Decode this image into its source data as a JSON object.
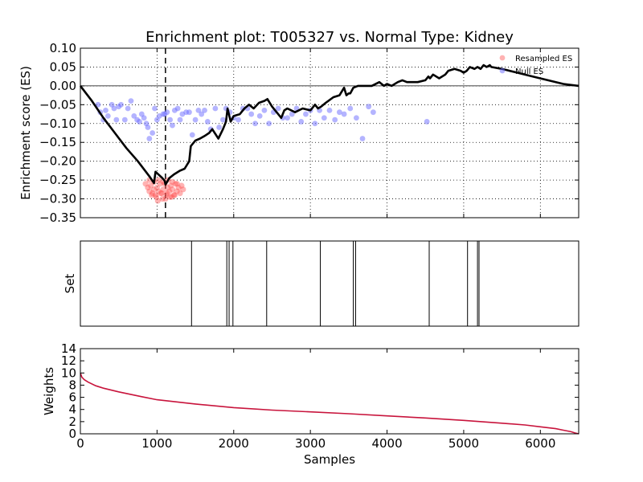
{
  "chart_data": [
    {
      "type": "line",
      "title": "Enrichment plot: T005327 vs. Normal Type: Kidney",
      "ylabel": "Enrichment score (ES)",
      "xlim": [
        0,
        6500
      ],
      "ylim": [
        -0.35,
        0.1
      ],
      "yticks": [
        "0.10",
        "0.05",
        "0.00",
        "−0.05",
        "−0.10",
        "−0.15",
        "−0.20",
        "−0.25",
        "−0.30",
        "−0.35"
      ],
      "ytick_values": [
        0.1,
        0.05,
        0.0,
        -0.05,
        -0.1,
        -0.15,
        -0.2,
        -0.25,
        -0.3,
        -0.35
      ],
      "grid": true,
      "legend_position": "top-right",
      "legend": [
        "Resampled ES",
        "Null ES"
      ],
      "colors": {
        "resampled": "#ff5555",
        "null": "#6a6aff",
        "es_line": "#000000"
      },
      "dashed_vline_x": 1110,
      "series": [
        {
          "name": "ES",
          "x": [
            0,
            150,
            300,
            450,
            600,
            750,
            900,
            960,
            980,
            1060,
            1100,
            1110,
            1160,
            1220,
            1300,
            1360,
            1420,
            1440,
            1460,
            1500,
            1560,
            1620,
            1680,
            1720,
            1800,
            1860,
            1900,
            1920,
            1960,
            2000,
            2080,
            2140,
            2200,
            2260,
            2330,
            2400,
            2440,
            2500,
            2560,
            2620,
            2660,
            2700,
            2800,
            2900,
            3000,
            3060,
            3100,
            3140,
            3200,
            3300,
            3380,
            3440,
            3470,
            3500,
            3520,
            3560,
            3620,
            3700,
            3800,
            3900,
            3960,
            4000,
            4060,
            4140,
            4200,
            4260,
            4340,
            4400,
            4500,
            4540,
            4560,
            4600,
            4680,
            4760,
            4800,
            4880,
            4960,
            5000,
            5040,
            5080,
            5140,
            5180,
            5220,
            5260,
            5300,
            5340,
            5360,
            5500,
            5700,
            5900,
            6100,
            6300,
            6500
          ],
          "y": [
            0.0,
            -0.04,
            -0.085,
            -0.125,
            -0.165,
            -0.2,
            -0.24,
            -0.258,
            -0.228,
            -0.243,
            -0.252,
            -0.262,
            -0.245,
            -0.235,
            -0.225,
            -0.22,
            -0.2,
            -0.16,
            -0.155,
            -0.145,
            -0.14,
            -0.133,
            -0.125,
            -0.115,
            -0.14,
            -0.115,
            -0.095,
            -0.06,
            -0.095,
            -0.08,
            -0.075,
            -0.06,
            -0.05,
            -0.06,
            -0.045,
            -0.04,
            -0.035,
            -0.055,
            -0.07,
            -0.085,
            -0.065,
            -0.06,
            -0.07,
            -0.06,
            -0.065,
            -0.05,
            -0.06,
            -0.055,
            -0.045,
            -0.03,
            -0.025,
            -0.005,
            -0.025,
            -0.02,
            -0.02,
            -0.005,
            0.0,
            0.0,
            0.0,
            0.01,
            0.0,
            0.005,
            0.0,
            0.01,
            0.015,
            0.01,
            0.01,
            0.01,
            0.015,
            0.025,
            0.02,
            0.03,
            0.02,
            0.03,
            0.04,
            0.045,
            0.04,
            0.035,
            0.04,
            0.05,
            0.045,
            0.05,
            0.045,
            0.055,
            0.05,
            0.055,
            0.05,
            0.045,
            0.035,
            0.025,
            0.015,
            0.005,
            0.0
          ]
        },
        {
          "name": "Null ES",
          "x": [
            230,
            260,
            300,
            330,
            360,
            410,
            440,
            470,
            500,
            530,
            580,
            620,
            660,
            700,
            740,
            770,
            800,
            830,
            860,
            880,
            900,
            940,
            970,
            1000,
            1030,
            1080,
            1100,
            1130,
            1170,
            1200,
            1230,
            1270,
            1300,
            1330,
            1380,
            1420,
            1460,
            1500,
            1540,
            1580,
            1620,
            1660,
            1700,
            1760,
            1810,
            1860,
            1900,
            1950,
            2000,
            2060,
            2120,
            2180,
            2230,
            2280,
            2340,
            2400,
            2460,
            2520,
            2580,
            2640,
            2700,
            2760,
            2820,
            2880,
            2940,
            3000,
            3060,
            3120,
            3180,
            3250,
            3320,
            3380,
            3440,
            3520,
            3600,
            3680,
            3760,
            3820,
            4520
          ],
          "y": [
            -0.05,
            -0.07,
            -0.09,
            -0.065,
            -0.08,
            -0.05,
            -0.06,
            -0.09,
            -0.055,
            -0.05,
            -0.09,
            -0.06,
            -0.04,
            -0.08,
            -0.09,
            -0.095,
            -0.075,
            -0.085,
            -0.1,
            -0.11,
            -0.14,
            -0.125,
            -0.06,
            -0.09,
            -0.08,
            -0.075,
            -0.075,
            -0.07,
            -0.09,
            -0.105,
            -0.065,
            -0.06,
            -0.09,
            -0.075,
            -0.07,
            -0.07,
            -0.13,
            -0.09,
            -0.065,
            -0.075,
            -0.065,
            -0.095,
            -0.115,
            -0.06,
            -0.11,
            -0.09,
            -0.06,
            -0.07,
            -0.085,
            -0.09,
            -0.06,
            -0.06,
            -0.075,
            -0.1,
            -0.08,
            -0.065,
            -0.1,
            -0.07,
            -0.06,
            -0.085,
            -0.085,
            -0.075,
            -0.06,
            -0.095,
            -0.075,
            -0.065,
            -0.1,
            -0.065,
            -0.085,
            -0.065,
            -0.09,
            -0.07,
            -0.075,
            -0.06,
            -0.085,
            -0.14,
            -0.055,
            -0.07,
            -0.095
          ]
        },
        {
          "name": "Resampled ES",
          "x": [
            850,
            880,
            900,
            920,
            940,
            960,
            980,
            1000,
            1020,
            1040,
            1060,
            1080,
            1100,
            1120,
            1140,
            1160,
            1180,
            1200,
            1220,
            1240,
            1260,
            1280,
            1300,
            1320,
            1340,
            900,
            960,
            1020,
            1080,
            1140,
            1200,
            1260,
            930,
            990,
            1050,
            1110,
            1170,
            1230,
            1010,
            1070,
            1130,
            1190
          ],
          "y": [
            -0.26,
            -0.27,
            -0.28,
            -0.265,
            -0.285,
            -0.275,
            -0.29,
            -0.27,
            -0.28,
            -0.26,
            -0.285,
            -0.275,
            -0.26,
            -0.29,
            -0.27,
            -0.28,
            -0.265,
            -0.275,
            -0.29,
            -0.26,
            -0.28,
            -0.27,
            -0.285,
            -0.265,
            -0.275,
            -0.25,
            -0.255,
            -0.25,
            -0.255,
            -0.25,
            -0.255,
            -0.26,
            -0.29,
            -0.295,
            -0.285,
            -0.3,
            -0.295,
            -0.29,
            -0.305,
            -0.3,
            -0.285,
            -0.295
          ]
        }
      ]
    },
    {
      "type": "line",
      "ylabel": "Set",
      "xlim": [
        0,
        6500
      ],
      "set_positions": [
        1450,
        1910,
        1940,
        1990,
        2430,
        3130,
        3560,
        3590,
        4550,
        5050,
        5180,
        5200
      ]
    },
    {
      "type": "area",
      "ylabel": "Weights",
      "xlabel": "Samples",
      "xlim": [
        0,
        6500
      ],
      "ylim": [
        0,
        14
      ],
      "xticks": [
        "0",
        "1000",
        "2000",
        "3000",
        "4000",
        "5000",
        "6000"
      ],
      "xtick_values": [
        0,
        1000,
        2000,
        3000,
        4000,
        5000,
        6000
      ],
      "yticks": [
        "14",
        "12",
        "10",
        "8",
        "6",
        "4",
        "2",
        "0"
      ],
      "ytick_values": [
        14,
        12,
        10,
        8,
        6,
        4,
        2,
        0
      ],
      "colors": {
        "line": "#c8143c"
      },
      "series": [
        {
          "x": [
            0,
            20,
            50,
            100,
            200,
            300,
            500,
            800,
            1000,
            1500,
            2000,
            2500,
            3000,
            3500,
            4000,
            4500,
            5000,
            5500,
            5800,
            6000,
            6200,
            6300,
            6400,
            6450,
            6500
          ],
          "y": [
            10.0,
            9.3,
            8.9,
            8.5,
            7.9,
            7.5,
            6.9,
            6.1,
            5.6,
            4.9,
            4.3,
            3.9,
            3.6,
            3.3,
            2.95,
            2.6,
            2.2,
            1.75,
            1.45,
            1.15,
            0.85,
            0.6,
            0.35,
            0.15,
            0.0
          ]
        }
      ]
    }
  ]
}
